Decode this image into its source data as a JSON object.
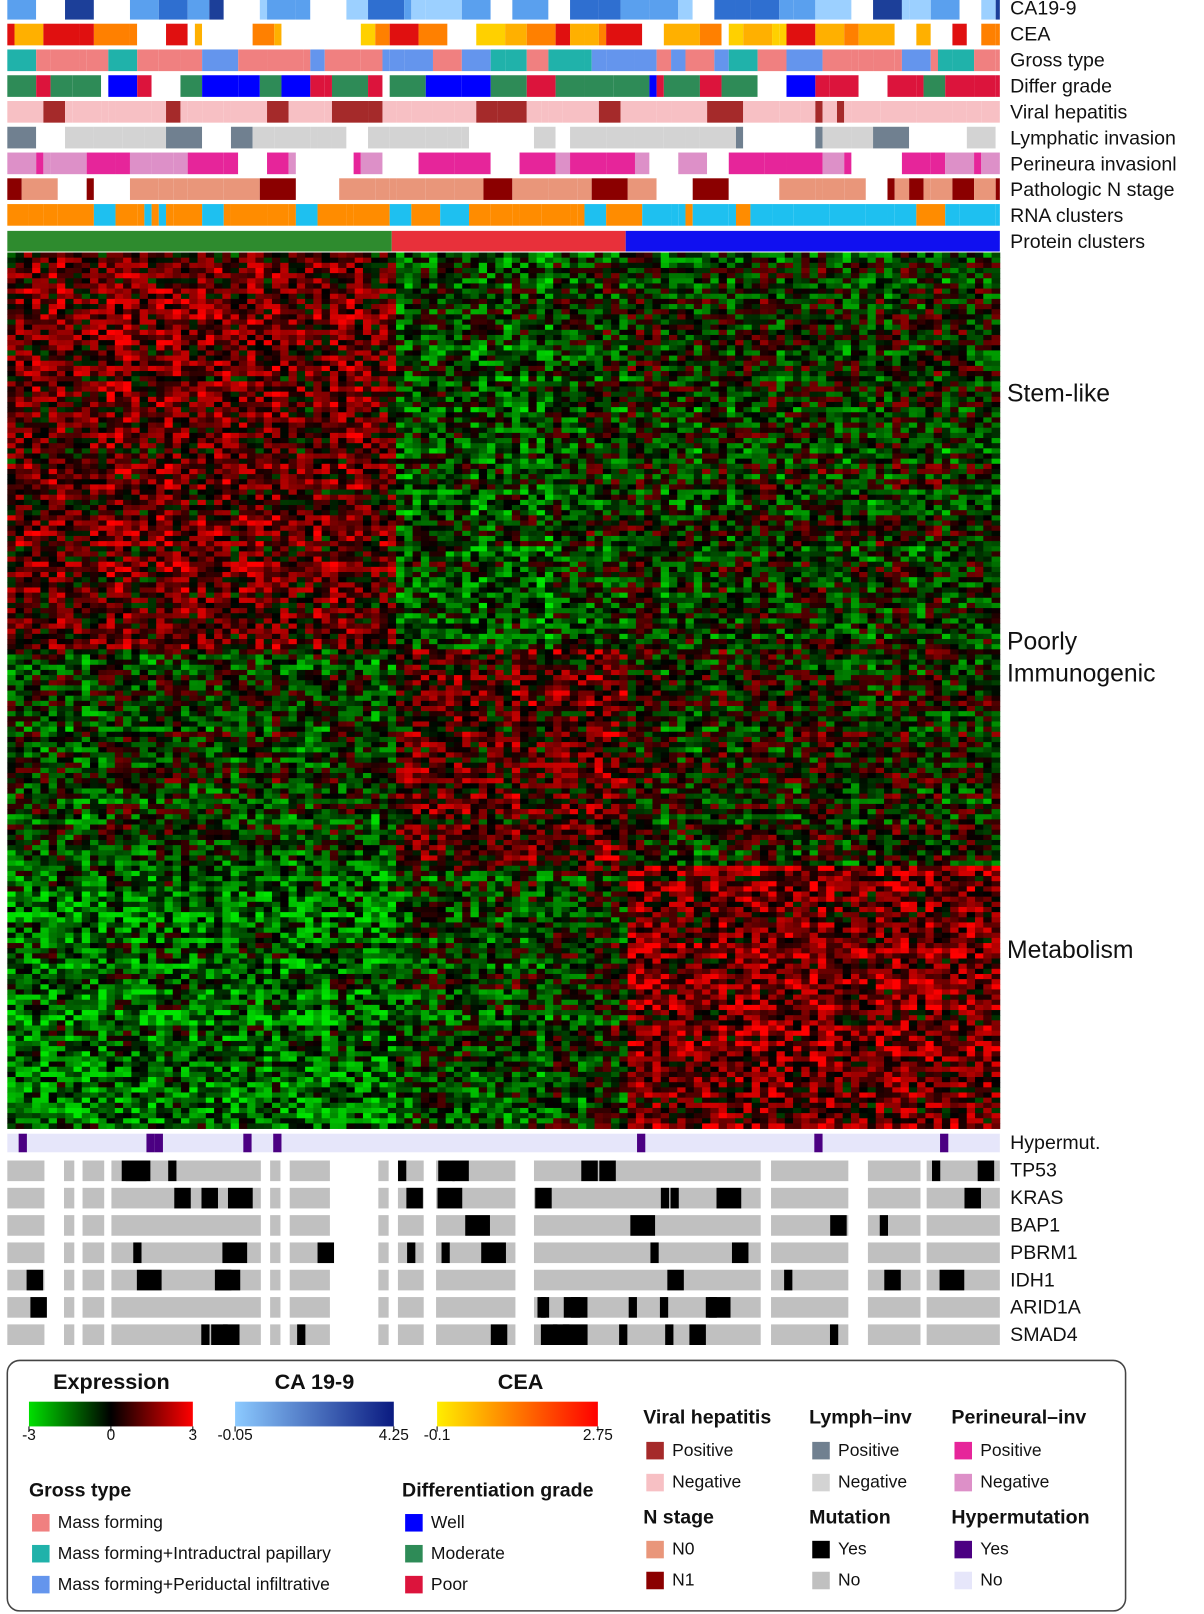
{
  "track_labels": [
    "CA19-9",
    "CEA",
    "Gross type",
    "Differ grade",
    "Viral hepatitis",
    "Lymphatic invasion",
    "Perineura invasionl",
    "Pathologic N stage",
    "RNA clusters",
    "Protein clusters"
  ],
  "cluster_labels": {
    "stem": "Stem-like",
    "poorly": "Poorly",
    "immuno": "Immunogenic",
    "metabolism": "Metabolism"
  },
  "mutation_labels": [
    "Hypermut.",
    "TP53",
    "KRAS",
    "BAP1",
    "PBRM1",
    "IDH1",
    "ARID1A",
    "SMAD4"
  ],
  "legend": {
    "scales": [
      {
        "title": "Expression",
        "ticks": [
          -3,
          0,
          3
        ],
        "colors": [
          "#00e000",
          "#000000",
          "#ff0000"
        ]
      },
      {
        "title": "CA 19-9",
        "ticks": [
          -0.05,
          4.25
        ],
        "colors": [
          "#8ccaff",
          "#0a1a80"
        ]
      },
      {
        "title": "CEA",
        "ticks": [
          -0.1,
          2.75
        ],
        "colors": [
          "#ffee00",
          "#ff0000"
        ]
      }
    ],
    "groups": [
      {
        "title": "Gross type",
        "items": [
          {
            "label": "Mass forming",
            "color": "#f08080"
          },
          {
            "label": "Mass forming+Intraductral papillary",
            "color": "#20b2aa"
          },
          {
            "label": "Mass forming+Periductal infiltrative",
            "color": "#6495ed"
          }
        ]
      },
      {
        "title": "Differentiation grade",
        "items": [
          {
            "label": "Well",
            "color": "#0000ff"
          },
          {
            "label": "Moderate",
            "color": "#2e8b57"
          },
          {
            "label": "Poor",
            "color": "#dc143c"
          }
        ]
      },
      {
        "title": "Viral hepatitis",
        "items": [
          {
            "label": "Positive",
            "color": "#a52a2a"
          },
          {
            "label": "Negative",
            "color": "#f7c0c4"
          }
        ]
      },
      {
        "title": "Lymph–inv",
        "items": [
          {
            "label": "Positive",
            "color": "#708090"
          },
          {
            "label": "Negative",
            "color": "#d3d3d3"
          }
        ]
      },
      {
        "title": "Perineural–inv",
        "items": [
          {
            "label": "Positive",
            "color": "#e6259a"
          },
          {
            "label": "Negative",
            "color": "#dd90c8"
          }
        ]
      },
      {
        "title": "N stage",
        "items": [
          {
            "label": "N0",
            "color": "#e9967a"
          },
          {
            "label": "N1",
            "color": "#8b0000"
          }
        ]
      },
      {
        "title": "Mutation",
        "items": [
          {
            "label": "Yes",
            "color": "#000000"
          },
          {
            "label": "No",
            "color": "#c0c0c0"
          }
        ]
      },
      {
        "title": "Hypermutation",
        "items": [
          {
            "label": "Yes",
            "color": "#4b0082"
          },
          {
            "label": "No",
            "color": "#e6e6fa"
          }
        ]
      }
    ]
  }
}
